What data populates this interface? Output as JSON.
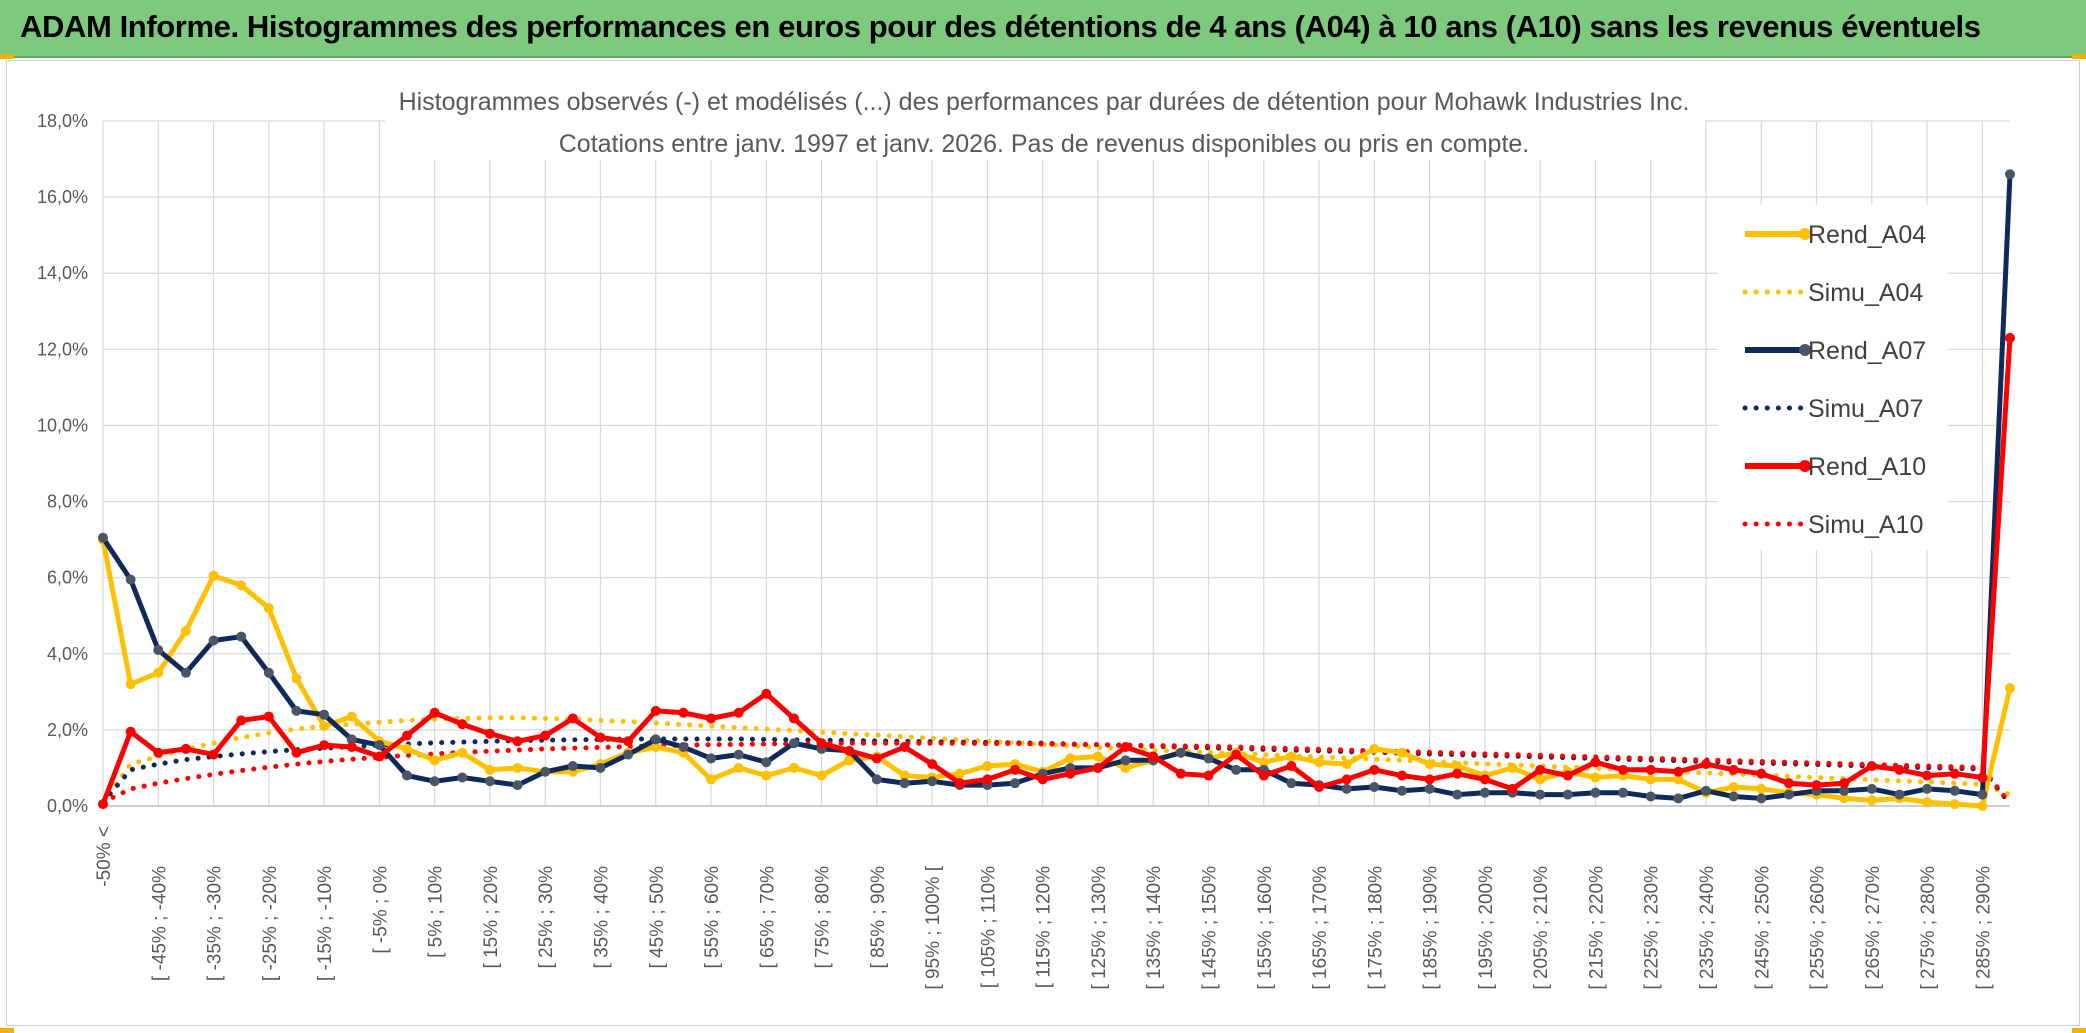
{
  "banner": {
    "title": "ADAM Informe. Histogrammes des performances en euros pour des détentions de 4 ans (A04) à 10 ans (A10) sans les revenus éventuels"
  },
  "chart_data": {
    "type": "line",
    "title_line1": "Histogrammes observés (-) et modélisés (...) des performances par durées de détention pour Mohawk Industries Inc.",
    "title_line2": "Cotations entre janv. 1997 et janv. 2026. Pas de revenus disponibles ou pris en compte.",
    "ylim": [
      0,
      18
    ],
    "y_ticks": [
      "0,0%",
      "2,0%",
      "4,0%",
      "6,0%",
      "8,0%",
      "10,0%",
      "12,0%",
      "14,0%",
      "16,0%",
      "18,0%"
    ],
    "x_tick_labels": [
      "-50% <",
      "[ -45% ; -40%",
      "[ -35% ; -30%",
      "[ -25% ; -20%",
      "[ -15% ; -10%",
      "[ -5% ; 0%",
      "[ 5% ; 10%",
      "[ 15% ; 20%",
      "[ 25% ; 30%",
      "[ 35% ; 40%",
      "[ 45% ; 50%",
      "[ 55% ; 60%",
      "[ 65% ; 70%",
      "[ 75% ; 80%",
      "[ 85% ; 90%",
      "[ 95% ; 100% [",
      "[ 105% ; 110%",
      "[ 115% ; 120%",
      "[ 125% ; 130%",
      "[ 135% ; 140%",
      "[ 145% ; 150%",
      "[ 155% ; 160%",
      "[ 165% ; 170%",
      "[ 175% ; 180%",
      "[ 185% ; 190%",
      "[ 195% ; 200%",
      "[ 205% ; 210%",
      "[ 215% ; 220%",
      "[ 225% ; 230%",
      "[ 235% ; 240%",
      "[ 245% ; 250%",
      "[ 255% ; 260%",
      "[ 265% ; 270%",
      "[ 275% ; 280%",
      "[ 285% ; 290%"
    ],
    "n_points": 70,
    "series": [
      {
        "name": "Rend_A04",
        "style": "solid",
        "color": "#ffc000",
        "values": [
          7.0,
          3.2,
          3.5,
          4.6,
          6.05,
          5.8,
          5.2,
          3.35,
          2.1,
          2.35,
          1.7,
          1.5,
          1.2,
          1.4,
          0.95,
          1.0,
          0.9,
          0.9,
          1.1,
          1.4,
          1.55,
          1.4,
          0.7,
          1.0,
          0.8,
          1.0,
          0.8,
          1.2,
          1.3,
          0.8,
          0.75,
          0.85,
          1.05,
          1.1,
          0.9,
          1.25,
          1.3,
          1.0,
          1.2,
          1.4,
          1.25,
          1.4,
          1.15,
          1.3,
          1.15,
          1.1,
          1.5,
          1.4,
          1.1,
          1.05,
          0.8,
          1.0,
          0.7,
          0.9,
          0.75,
          0.8,
          0.7,
          0.7,
          0.35,
          0.5,
          0.45,
          0.35,
          0.3,
          0.2,
          0.15,
          0.2,
          0.1,
          0.05,
          0.0,
          3.1
        ]
      },
      {
        "name": "Simu_A04",
        "style": "dotted",
        "color": "#ffc000",
        "values": [
          0.1,
          1.1,
          1.3,
          1.5,
          1.65,
          1.8,
          1.92,
          2.02,
          2.1,
          2.15,
          2.2,
          2.25,
          2.28,
          2.3,
          2.32,
          2.32,
          2.3,
          2.28,
          2.25,
          2.22,
          2.18,
          2.14,
          2.1,
          2.06,
          2.02,
          1.98,
          1.94,
          1.9,
          1.86,
          1.82,
          1.78,
          1.74,
          1.7,
          1.66,
          1.62,
          1.58,
          1.54,
          1.5,
          1.47,
          1.44,
          1.41,
          1.38,
          1.35,
          1.32,
          1.29,
          1.26,
          1.23,
          1.2,
          1.17,
          1.14,
          1.11,
          1.08,
          1.05,
          1.02,
          0.99,
          0.96,
          0.93,
          0.9,
          0.87,
          0.84,
          0.81,
          0.78,
          0.75,
          0.72,
          0.69,
          0.66,
          0.63,
          0.6,
          0.57,
          0.3
        ]
      },
      {
        "name": "Rend_A07",
        "style": "solid",
        "color": "#0f2a5a",
        "values": [
          7.05,
          5.95,
          4.1,
          3.5,
          4.35,
          4.45,
          3.5,
          2.5,
          2.4,
          1.75,
          1.6,
          0.8,
          0.65,
          0.75,
          0.65,
          0.55,
          0.9,
          1.05,
          1.0,
          1.35,
          1.75,
          1.55,
          1.25,
          1.35,
          1.15,
          1.65,
          1.5,
          1.45,
          0.7,
          0.6,
          0.65,
          0.55,
          0.55,
          0.6,
          0.85,
          1.0,
          1.0,
          1.2,
          1.2,
          1.4,
          1.25,
          0.95,
          0.95,
          0.6,
          0.55,
          0.45,
          0.5,
          0.4,
          0.45,
          0.3,
          0.35,
          0.35,
          0.3,
          0.3,
          0.35,
          0.35,
          0.25,
          0.2,
          0.4,
          0.25,
          0.2,
          0.3,
          0.4,
          0.4,
          0.45,
          0.3,
          0.45,
          0.4,
          0.3,
          16.6
        ]
      },
      {
        "name": "Simu_A07",
        "style": "dotted",
        "color": "#0f2a5a",
        "values": [
          0.1,
          0.95,
          1.1,
          1.22,
          1.3,
          1.37,
          1.43,
          1.48,
          1.52,
          1.56,
          1.6,
          1.63,
          1.66,
          1.68,
          1.7,
          1.72,
          1.73,
          1.74,
          1.75,
          1.76,
          1.76,
          1.76,
          1.76,
          1.76,
          1.75,
          1.74,
          1.73,
          1.72,
          1.71,
          1.7,
          1.69,
          1.68,
          1.67,
          1.66,
          1.65,
          1.63,
          1.61,
          1.59,
          1.57,
          1.55,
          1.53,
          1.51,
          1.49,
          1.47,
          1.45,
          1.43,
          1.41,
          1.39,
          1.37,
          1.35,
          1.33,
          1.31,
          1.29,
          1.27,
          1.25,
          1.23,
          1.21,
          1.19,
          1.17,
          1.15,
          1.13,
          1.11,
          1.09,
          1.07,
          1.05,
          1.03,
          1.01,
          0.99,
          0.97,
          0.05
        ]
      },
      {
        "name": "Rend_A10",
        "style": "solid",
        "color": "#ff0000",
        "values": [
          0.05,
          1.95,
          1.4,
          1.5,
          1.35,
          2.25,
          2.35,
          1.4,
          1.6,
          1.55,
          1.3,
          1.85,
          2.45,
          2.15,
          1.9,
          1.7,
          1.85,
          2.3,
          1.8,
          1.7,
          2.5,
          2.45,
          2.3,
          2.45,
          2.95,
          2.3,
          1.65,
          1.45,
          1.25,
          1.55,
          1.1,
          0.6,
          0.7,
          0.95,
          0.7,
          0.85,
          1.0,
          1.55,
          1.3,
          0.85,
          0.8,
          1.35,
          0.8,
          1.05,
          0.5,
          0.7,
          0.95,
          0.8,
          0.7,
          0.85,
          0.7,
          0.45,
          0.95,
          0.8,
          1.15,
          0.95,
          0.95,
          0.9,
          1.1,
          0.95,
          0.85,
          0.6,
          0.55,
          0.6,
          1.05,
          0.95,
          0.8,
          0.85,
          0.75,
          12.3
        ]
      },
      {
        "name": "Simu_A10",
        "style": "dotted",
        "color": "#ff0000",
        "values": [
          0.1,
          0.45,
          0.6,
          0.72,
          0.83,
          0.93,
          1.02,
          1.1,
          1.17,
          1.23,
          1.28,
          1.33,
          1.37,
          1.41,
          1.44,
          1.47,
          1.5,
          1.52,
          1.54,
          1.56,
          1.58,
          1.6,
          1.61,
          1.62,
          1.63,
          1.64,
          1.64,
          1.65,
          1.65,
          1.65,
          1.65,
          1.65,
          1.64,
          1.64,
          1.63,
          1.62,
          1.61,
          1.6,
          1.59,
          1.58,
          1.57,
          1.55,
          1.53,
          1.51,
          1.49,
          1.47,
          1.45,
          1.43,
          1.41,
          1.39,
          1.37,
          1.35,
          1.33,
          1.31,
          1.29,
          1.27,
          1.25,
          1.23,
          1.21,
          1.19,
          1.17,
          1.15,
          1.13,
          1.11,
          1.09,
          1.07,
          1.05,
          1.03,
          1.01,
          0.05
        ]
      }
    ],
    "legend": [
      "Rend_A04",
      "Simu_A04",
      "Rend_A07",
      "Simu_A07",
      "Rend_A10",
      "Simu_A10"
    ],
    "legend_position": "top-right",
    "grid": true
  }
}
